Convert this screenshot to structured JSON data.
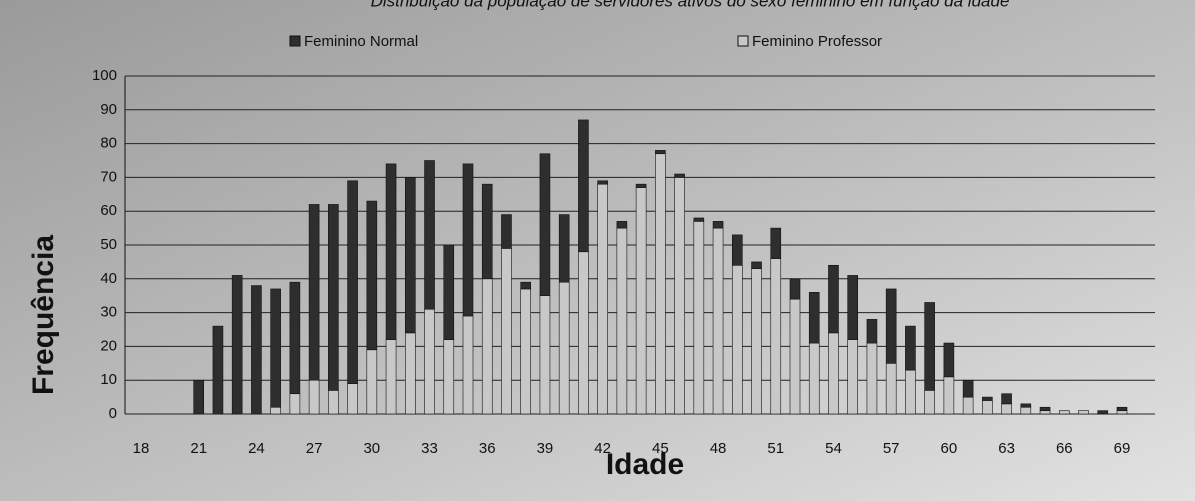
{
  "chart_data": {
    "type": "bar",
    "stacked": true,
    "title": "Distribuição da população de servidores ativos do sexo feminino em função da idade",
    "x_label": "Idade",
    "y_label": "Frequência",
    "categories": [
      "18",
      null,
      null,
      "21",
      null,
      null,
      "24",
      null,
      null,
      "27",
      null,
      null,
      "30",
      null,
      null,
      "33",
      null,
      null,
      "36",
      null,
      null,
      "39",
      null,
      null,
      "42",
      null,
      null,
      "45",
      null,
      null,
      "48",
      null,
      null,
      "51",
      null,
      null,
      "54",
      null,
      null,
      "57",
      null,
      null,
      "60",
      null,
      null,
      "63",
      null,
      null,
      "66",
      null,
      null,
      "69"
    ],
    "series": [
      {
        "name": "Feminino Normal",
        "color": "#2e2e2e",
        "values": [
          0,
          0,
          0,
          10,
          26,
          41,
          38,
          35,
          33,
          52,
          55,
          60,
          44,
          52,
          46,
          44,
          28,
          45,
          28,
          10,
          2,
          42,
          20,
          39,
          1,
          2,
          1,
          1,
          1,
          1,
          2,
          9,
          2,
          9,
          6,
          15,
          20,
          19,
          7,
          22,
          13,
          26,
          10,
          5,
          1,
          3,
          1,
          1,
          0,
          0,
          1,
          1
        ]
      },
      {
        "name": "Feminino Professor",
        "color": "#c8c8c8",
        "values": [
          0,
          0,
          0,
          0,
          0,
          0,
          0,
          2,
          6,
          10,
          7,
          9,
          19,
          22,
          24,
          31,
          22,
          29,
          40,
          49,
          37,
          35,
          39,
          48,
          68,
          55,
          67,
          77,
          70,
          57,
          55,
          44,
          43,
          46,
          34,
          21,
          24,
          22,
          21,
          15,
          13,
          7,
          11,
          5,
          4,
          3,
          2,
          1,
          1,
          1,
          0,
          1
        ]
      }
    ],
    "ylim": [
      0,
      100
    ],
    "yticks": [
      0,
      10,
      20,
      30,
      40,
      50,
      60,
      70,
      80,
      90,
      100
    ],
    "grid": true,
    "legend": "top"
  }
}
